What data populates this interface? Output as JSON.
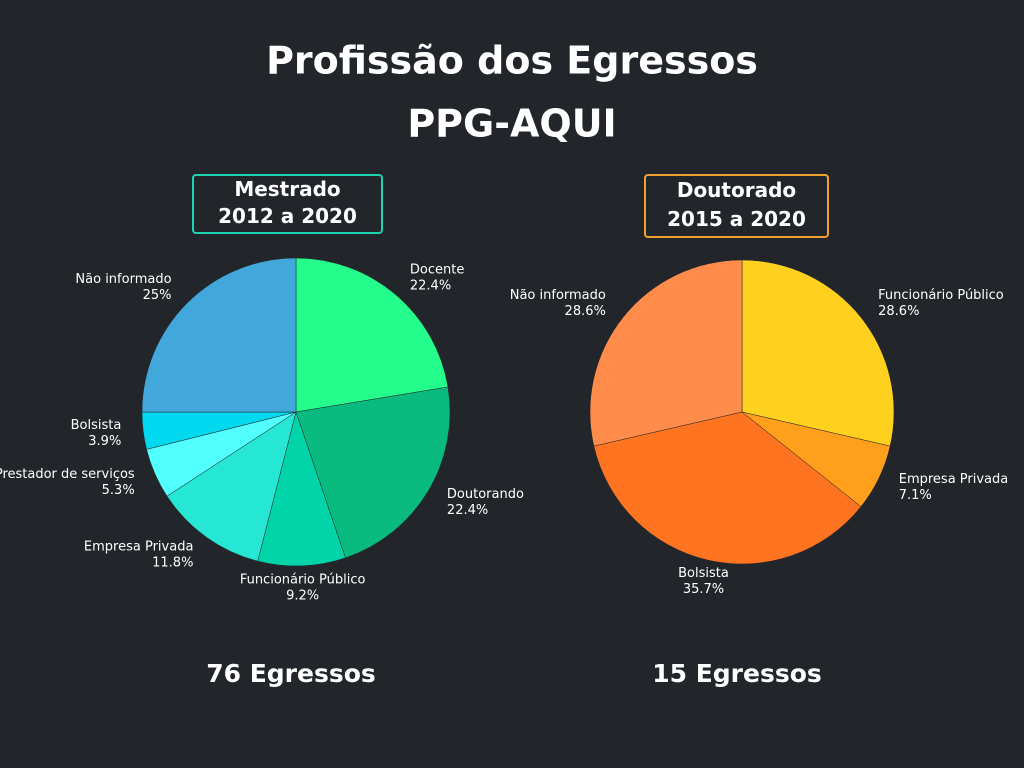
{
  "header": {
    "title": "Profissão dos Egressos",
    "subtitle": "PPG-AQUI"
  },
  "chart_data": [
    {
      "type": "pie",
      "title": "Mestrado",
      "subtitle": "2012 a 2020",
      "footer": "76 Egressos",
      "title_box_color": "#1dd3b0",
      "categories": [
        "Docente",
        "Doutorando",
        "Funcionário Público",
        "Empresa Privada",
        "Prestador de serviços",
        "Bolsista",
        "Não informado"
      ],
      "values": [
        22.4,
        22.4,
        9.2,
        11.8,
        5.3,
        3.9,
        25
      ],
      "value_labels": [
        "22.4%",
        "22.4%",
        "9.2%",
        "11.8%",
        "5.3%",
        "3.9%",
        "25%"
      ],
      "colors": [
        "#24fc8c",
        "#0abb80",
        "#00d4a8",
        "#26e6d4",
        "#52ffff",
        "#00d8f0",
        "#42a7db"
      ]
    },
    {
      "type": "pie",
      "title": "Doutorado",
      "subtitle": "2015 a 2020",
      "footer": "15 Egressos",
      "title_box_color": "#f0a030",
      "categories": [
        "Funcionário Público",
        "Empresa Privada",
        "Bolsista",
        "Não informado"
      ],
      "values": [
        28.6,
        7.1,
        35.7,
        28.6
      ],
      "value_labels": [
        "28.6%",
        "7.1%",
        "35.7%",
        "28.6%"
      ],
      "colors": [
        "#ffd11f",
        "#ff9f1c",
        "#ff7420",
        "#ff8c4a"
      ]
    }
  ]
}
